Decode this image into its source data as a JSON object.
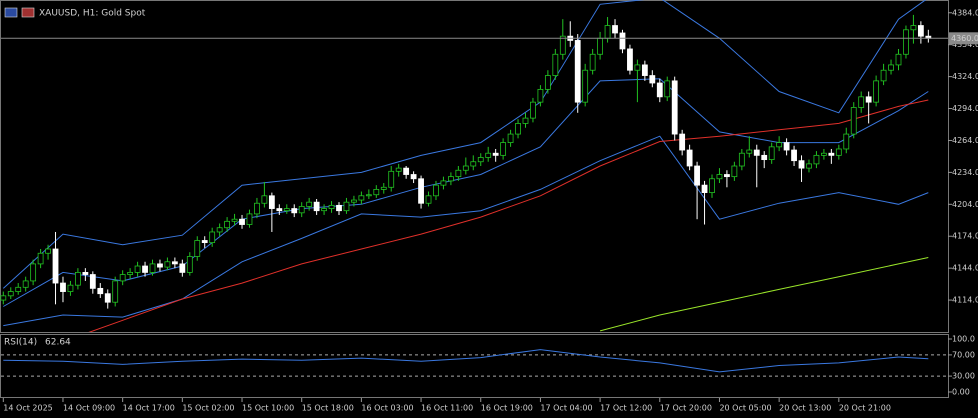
{
  "chart_data": {
    "type": "candlestick",
    "title": "XAUUSD, H1:  Gold Spot",
    "categories": [
      "14 Oct 2025",
      null,
      null,
      null,
      null,
      null,
      null,
      null,
      "14 Oct 09:00",
      null,
      null,
      null,
      null,
      null,
      null,
      null,
      "14 Oct 17:00",
      null,
      null,
      null,
      null,
      null,
      null,
      null,
      "15 Oct 02:00",
      null,
      null,
      null,
      null,
      null,
      null,
      null,
      "15 Oct 10:00",
      null,
      null,
      null,
      null,
      null,
      null,
      null,
      "15 Oct 18:00",
      null,
      null,
      null,
      null,
      null,
      null,
      null,
      "16 Oct 03:00",
      null,
      null,
      null,
      null,
      null,
      null,
      null,
      "16 Oct 11:00",
      null,
      null,
      null,
      null,
      null,
      null,
      null,
      "16 Oct 19:00",
      null,
      null,
      null,
      null,
      null,
      null,
      null,
      "17 Oct 04:00",
      null,
      null,
      null,
      null,
      null,
      null,
      null,
      "17 Oct 12:00",
      null,
      null,
      null,
      null,
      null,
      null,
      null,
      "17 Oct 20:00",
      null,
      null,
      null,
      null,
      null,
      null,
      null,
      "20 Oct 05:00",
      null,
      null,
      null,
      null,
      null,
      null,
      null,
      "20 Oct 13:00",
      null,
      null,
      null,
      null,
      null,
      null,
      null,
      "20 Oct 21:00",
      null,
      null,
      null,
      null,
      null,
      null,
      null,
      null,
      null,
      null,
      null,
      null
    ],
    "open": [
      4114,
      4118,
      4122,
      4126,
      4132,
      4148,
      4158,
      4162,
      4130,
      4122,
      4128,
      4140,
      4138,
      4125,
      4120,
      4112,
      4132,
      4138,
      4140,
      4146,
      4140,
      4148,
      4145,
      4150,
      4148,
      4140,
      4155,
      4170,
      4168,
      4178,
      4182,
      4188,
      4190,
      4185,
      4195,
      4205,
      4212,
      4200,
      4198,
      4200,
      4196,
      4202,
      4206,
      4198,
      4200,
      4203,
      4198,
      4206,
      4208,
      4212,
      4213,
      4218,
      4220,
      4235,
      4238,
      4232,
      4228,
      4205,
      4212,
      4222,
      4226,
      4230,
      4236,
      4240,
      4244,
      4248,
      4252,
      4250,
      4262,
      4270,
      4280,
      4285,
      4300,
      4312,
      4325,
      4345,
      4362,
      4358,
      4300,
      4330,
      4345,
      4360,
      4372,
      4365,
      4350,
      4330,
      4335,
      4325,
      4318,
      4305,
      4320,
      4270,
      4255,
      4240,
      4222,
      4215,
      4228,
      4232,
      4230,
      4240,
      4252,
      4255,
      4250,
      4246,
      4258,
      4262,
      4255,
      4245,
      4238,
      4242,
      4250,
      4252,
      4250,
      4256,
      4270,
      4295,
      4305,
      4300,
      4320,
      4330,
      4335,
      4345,
      4368,
      4372,
      4362
    ],
    "high": [
      4122,
      4126,
      4130,
      4136,
      4152,
      4162,
      4166,
      4178,
      4136,
      4132,
      4144,
      4144,
      4141,
      4130,
      4124,
      4136,
      4142,
      4144,
      4150,
      4150,
      4152,
      4152,
      4154,
      4154,
      4152,
      4159,
      4174,
      4174,
      4182,
      4186,
      4192,
      4195,
      4194,
      4199,
      4210,
      4225,
      4215,
      4204,
      4204,
      4204,
      4206,
      4210,
      4209,
      4204,
      4207,
      4206,
      4210,
      4212,
      4216,
      4218,
      4222,
      4224,
      4240,
      4242,
      4240,
      4235,
      4231,
      4216,
      4226,
      4230,
      4234,
      4240,
      4248,
      4250,
      4252,
      4258,
      4256,
      4266,
      4274,
      4284,
      4290,
      4304,
      4316,
      4330,
      4350,
      4378,
      4376,
      4364,
      4336,
      4350,
      4366,
      4380,
      4378,
      4368,
      4354,
      4340,
      4339,
      4330,
      4322,
      4324,
      4324,
      4274,
      4260,
      4244,
      4226,
      4232,
      4238,
      4236,
      4244,
      4256,
      4268,
      4260,
      4254,
      4262,
      4268,
      4266,
      4259,
      4250,
      4246,
      4254,
      4256,
      4256,
      4260,
      4276,
      4300,
      4310,
      4310,
      4325,
      4336,
      4340,
      4350,
      4372,
      4382,
      4376,
      4368
    ],
    "low": [
      4110,
      4115,
      4119,
      4122,
      4128,
      4144,
      4152,
      4110,
      4112,
      4118,
      4124,
      4132,
      4120,
      4116,
      4106,
      4108,
      4128,
      4134,
      4136,
      4136,
      4137,
      4141,
      4142,
      4144,
      4136,
      4137,
      4151,
      4163,
      4164,
      4174,
      4178,
      4184,
      4181,
      4182,
      4191,
      4201,
      4178,
      4194,
      4195,
      4192,
      4192,
      4198,
      4194,
      4194,
      4196,
      4194,
      4195,
      4202,
      4204,
      4209,
      4210,
      4214,
      4216,
      4230,
      4228,
      4224,
      4200,
      4202,
      4208,
      4218,
      4222,
      4226,
      4232,
      4236,
      4240,
      4244,
      4244,
      4246,
      4258,
      4266,
      4276,
      4281,
      4296,
      4308,
      4321,
      4340,
      4352,
      4290,
      4296,
      4326,
      4340,
      4356,
      4360,
      4346,
      4326,
      4300,
      4320,
      4314,
      4300,
      4301,
      4264,
      4250,
      4236,
      4190,
      4185,
      4210,
      4224,
      4220,
      4226,
      4236,
      4248,
      4220,
      4238,
      4242,
      4254,
      4250,
      4240,
      4225,
      4234,
      4238,
      4246,
      4242,
      4246,
      4252,
      4266,
      4290,
      4280,
      4296,
      4316,
      4326,
      4330,
      4341,
      4355,
      4355,
      4356
    ],
    "close": [
      4118,
      4122,
      4126,
      4132,
      4148,
      4158,
      4162,
      4130,
      4122,
      4128,
      4140,
      4138,
      4125,
      4120,
      4112,
      4132,
      4138,
      4140,
      4146,
      4140,
      4148,
      4145,
      4150,
      4148,
      4140,
      4155,
      4170,
      4168,
      4178,
      4182,
      4188,
      4190,
      4185,
      4195,
      4205,
      4212,
      4200,
      4198,
      4200,
      4196,
      4202,
      4206,
      4198,
      4200,
      4203,
      4198,
      4206,
      4208,
      4212,
      4213,
      4218,
      4220,
      4235,
      4238,
      4232,
      4228,
      4205,
      4212,
      4222,
      4226,
      4230,
      4236,
      4240,
      4244,
      4248,
      4252,
      4250,
      4262,
      4270,
      4280,
      4285,
      4300,
      4312,
      4325,
      4345,
      4362,
      4358,
      4300,
      4330,
      4345,
      4360,
      4372,
      4365,
      4350,
      4330,
      4335,
      4325,
      4318,
      4305,
      4320,
      4270,
      4255,
      4240,
      4222,
      4215,
      4228,
      4232,
      4230,
      4240,
      4252,
      4255,
      4250,
      4246,
      4258,
      4262,
      4255,
      4245,
      4238,
      4242,
      4250,
      4252,
      4250,
      4256,
      4270,
      4295,
      4305,
      4300,
      4320,
      4330,
      4335,
      4345,
      4368,
      4372,
      4362,
      4360
    ],
    "up_color": "#22c322",
    "down_color": "#ffffff",
    "ylim": [
      4084,
      4396
    ],
    "yticks": [
      {
        "value": 4114,
        "label": "4114.0"
      },
      {
        "value": 4144,
        "label": "4144.0"
      },
      {
        "value": 4174,
        "label": "4174.0"
      },
      {
        "value": 4204,
        "label": "4204.0"
      },
      {
        "value": 4234,
        "label": "4234.0"
      },
      {
        "value": 4264,
        "label": "4264.0"
      },
      {
        "value": 4294,
        "label": "4294.0"
      },
      {
        "value": 4324,
        "label": "4324.0"
      },
      {
        "value": 4354,
        "label": "4354.0"
      },
      {
        "value": 4384,
        "label": "4384.0"
      }
    ],
    "current": {
      "value": 4360,
      "label": "4360.0"
    },
    "indicators": {
      "x": [
        0,
        8,
        16,
        24,
        32,
        40,
        48,
        56,
        64,
        72,
        80,
        88,
        96,
        104,
        112,
        120,
        124
      ],
      "series": [
        {
          "color": "#3a78e0",
          "values": [
            4125,
            4176,
            4166,
            4175,
            4222,
            4228,
            4234,
            4250,
            4262,
            4300,
            4392,
            4398,
            4360,
            4310,
            4290,
            4378,
            4398
          ]
        },
        {
          "color": "#3a78e0",
          "values": [
            4108,
            4140,
            4132,
            4146,
            4190,
            4200,
            4204,
            4220,
            4232,
            4258,
            4320,
            4322,
            4272,
            4262,
            4262,
            4292,
            4310
          ]
        },
        {
          "color": "#3a78e0",
          "values": [
            4090,
            4100,
            4098,
            4115,
            4150,
            4172,
            4195,
            4192,
            4198,
            4218,
            4245,
            4268,
            4190,
            4205,
            4215,
            4204,
            4215
          ]
        },
        {
          "color": "#e0302a",
          "values": [
            4055,
            4075,
            4095,
            4115,
            4130,
            4148,
            4162,
            4176,
            4192,
            4212,
            4240,
            4263,
            4268,
            4274,
            4280,
            4296,
            4302
          ]
        },
        {
          "color": "#9ae62a",
          "values": [
            null,
            null,
            null,
            null,
            null,
            null,
            null,
            null,
            null,
            null,
            4085,
            4100,
            4112,
            4124,
            4136,
            4148,
            4154
          ]
        }
      ]
    },
    "rsi": {
      "label": "RSI(14)",
      "color": "#3a78e0",
      "x": [
        0,
        8,
        16,
        24,
        32,
        40,
        48,
        56,
        64,
        72,
        80,
        88,
        96,
        104,
        112,
        120,
        124
      ],
      "values": [
        60,
        58,
        52,
        58,
        62,
        60,
        64,
        58,
        65,
        80,
        66,
        55,
        38,
        50,
        55,
        66,
        62.64
      ],
      "ylim": [
        0,
        100
      ],
      "yticks": [
        {
          "value": 100,
          "label": "100.0"
        },
        {
          "value": 70,
          "label": "70.00"
        },
        {
          "value": 30,
          "label": "30.00"
        },
        {
          "value": 0,
          "label": "0.00"
        }
      ],
      "levels": [
        70,
        30
      ]
    }
  }
}
